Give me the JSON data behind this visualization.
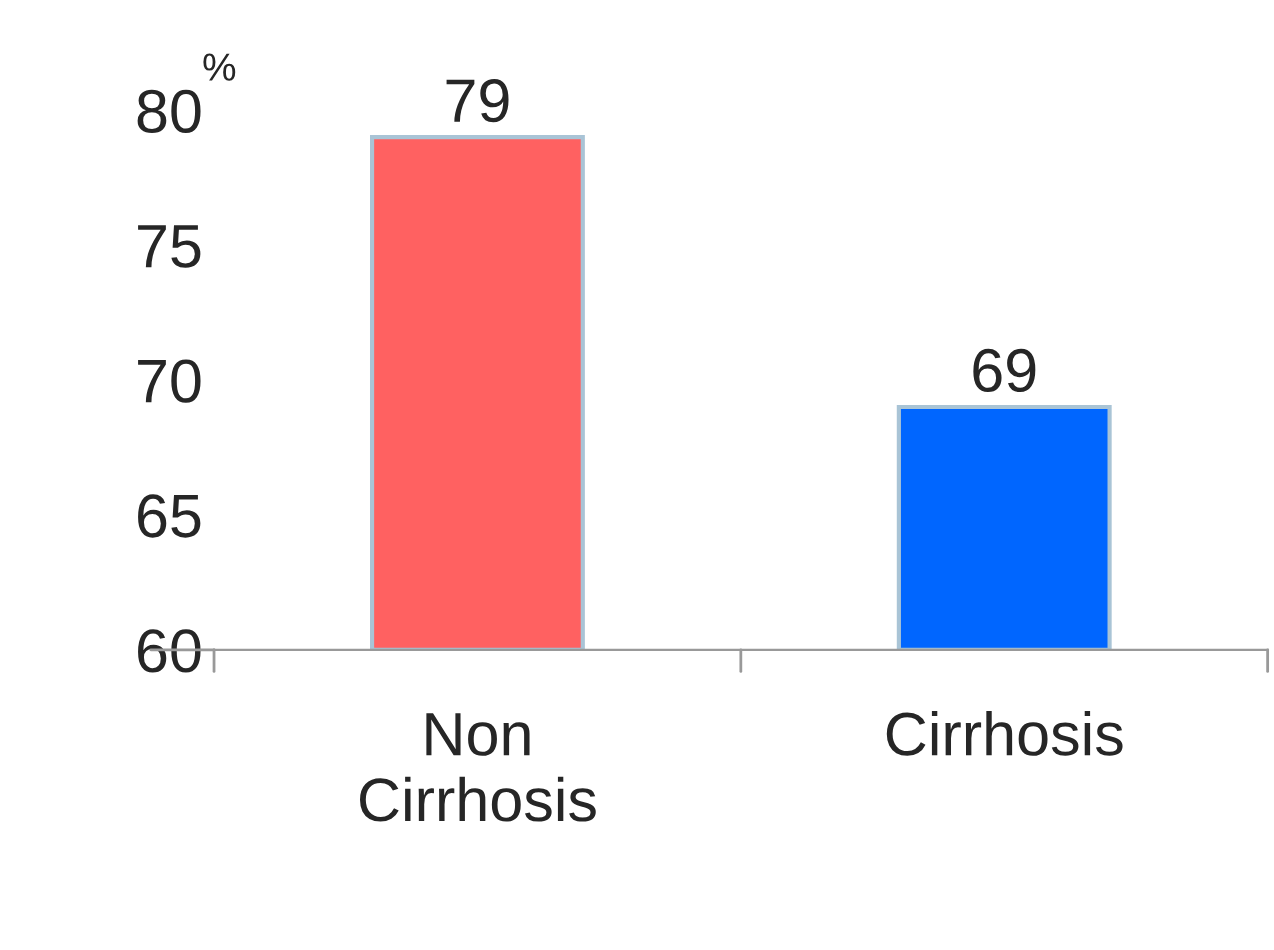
{
  "chart_data": {
    "type": "bar",
    "categories": [
      "Non\nCirrhosis",
      "Cirrhosis"
    ],
    "values": [
      79,
      69
    ],
    "colors": [
      "#ff6161",
      "#0066ff"
    ],
    "ylabel": "%",
    "ylim": [
      60,
      80
    ],
    "yticks": [
      60,
      65,
      70,
      75,
      80
    ],
    "data_labels": true,
    "grid": false,
    "legend": false
  }
}
